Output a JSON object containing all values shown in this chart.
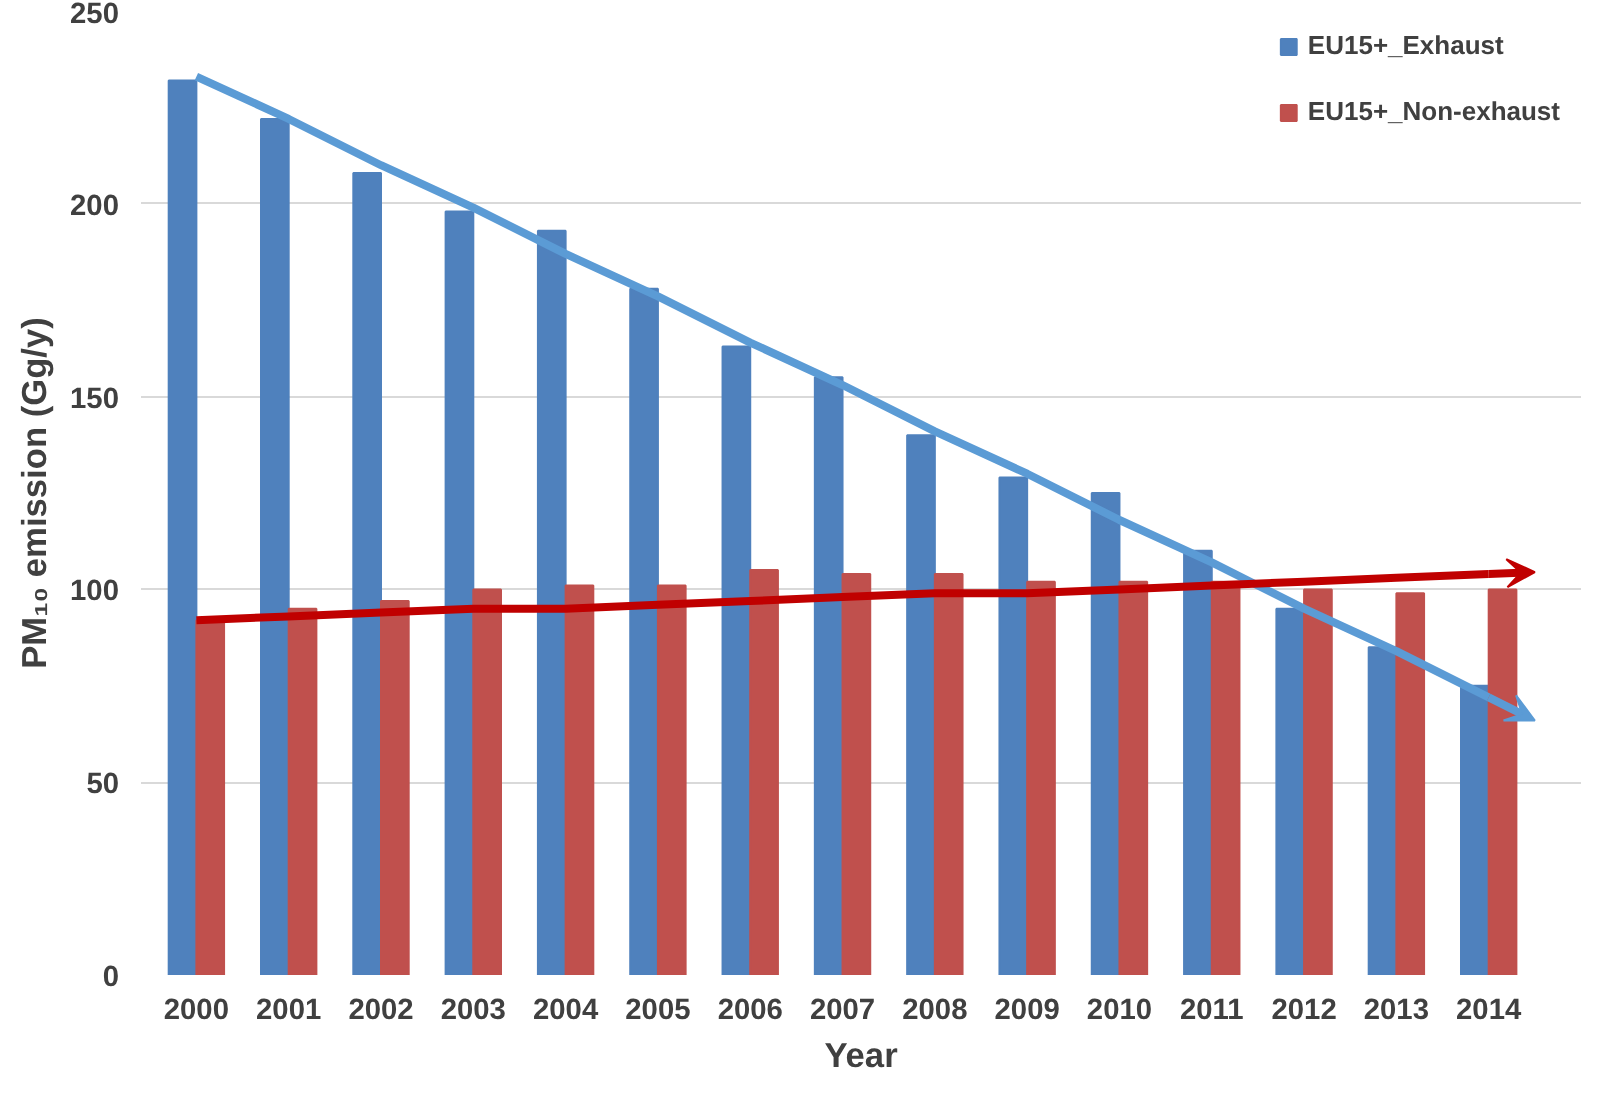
{
  "chart_data": {
    "type": "bar",
    "xlabel": "Year",
    "ylabel": "PM₁₀ emission (Gg/y)",
    "categories": [
      "2000",
      "2001",
      "2002",
      "2003",
      "2004",
      "2005",
      "2006",
      "2007",
      "2008",
      "2009",
      "2010",
      "2011",
      "2012",
      "2013",
      "2014"
    ],
    "series": [
      {
        "name": "EU15+_Exhaust",
        "color": "#4f81bd",
        "values": [
          232,
          222,
          208,
          198,
          193,
          178,
          163,
          155,
          140,
          129,
          125,
          110,
          95,
          85,
          75
        ]
      },
      {
        "name": "EU15+_Non-exhaust",
        "color": "#c0504d",
        "values": [
          92,
          95,
          97,
          100,
          101,
          101,
          105,
          104,
          104,
          102,
          102,
          102,
          100,
          99,
          100
        ]
      },
      {
        "type": "line",
        "color": "#5b9bd5",
        "values": [
          233,
          222,
          210,
          199,
          187,
          176,
          164,
          153,
          141,
          130,
          118,
          107,
          95,
          84,
          72
        ]
      },
      {
        "type": "line",
        "color": "#c00000",
        "values": [
          92,
          93,
          94,
          95,
          95,
          96,
          97,
          98,
          99,
          99,
          100,
          101,
          102,
          103,
          104
        ]
      }
    ],
    "ylim": [
      0,
      250
    ],
    "yticks": [
      0,
      50,
      100,
      150,
      200,
      250
    ],
    "grid": "y",
    "legend": "top right"
  }
}
